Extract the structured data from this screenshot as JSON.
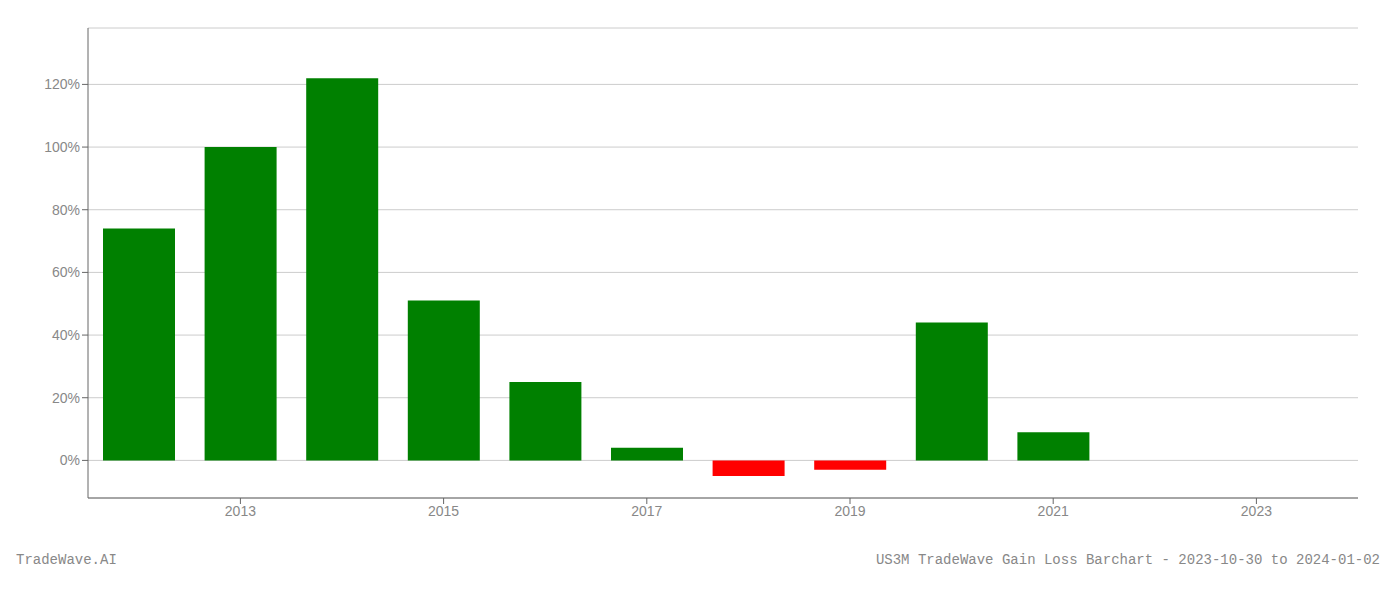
{
  "chart_data": {
    "type": "bar",
    "x": [
      2012,
      2013,
      2014,
      2015,
      2016,
      2017,
      2018,
      2019,
      2020,
      2021,
      2022
    ],
    "values": [
      0.74,
      1.0,
      1.22,
      0.51,
      0.25,
      0.04,
      -0.05,
      -0.03,
      0.44,
      0.09,
      0.0
    ],
    "colors": [
      "#008000",
      "#008000",
      "#008000",
      "#008000",
      "#008000",
      "#008000",
      "#ff0000",
      "#ff0000",
      "#008000",
      "#008000",
      "#008000"
    ],
    "xlim": [
      2011.5,
      2024.0
    ],
    "ylim": [
      -0.12,
      1.38
    ],
    "xticks": [
      2013,
      2015,
      2017,
      2019,
      2021,
      2023
    ],
    "yticks": [
      {
        "value": 0.0,
        "label": "0%"
      },
      {
        "value": 0.2,
        "label": "20%"
      },
      {
        "value": 0.4,
        "label": "40%"
      },
      {
        "value": 0.6,
        "label": "60%"
      },
      {
        "value": 0.8,
        "label": "80%"
      },
      {
        "value": 1.0,
        "label": "100%"
      },
      {
        "value": 1.2,
        "label": "120%"
      }
    ],
    "grid": true,
    "annotations": [
      "TradeWave.AI",
      "US3M TradeWave Gain Loss Barchart - 2023-10-30 to 2024-01-02"
    ]
  }
}
